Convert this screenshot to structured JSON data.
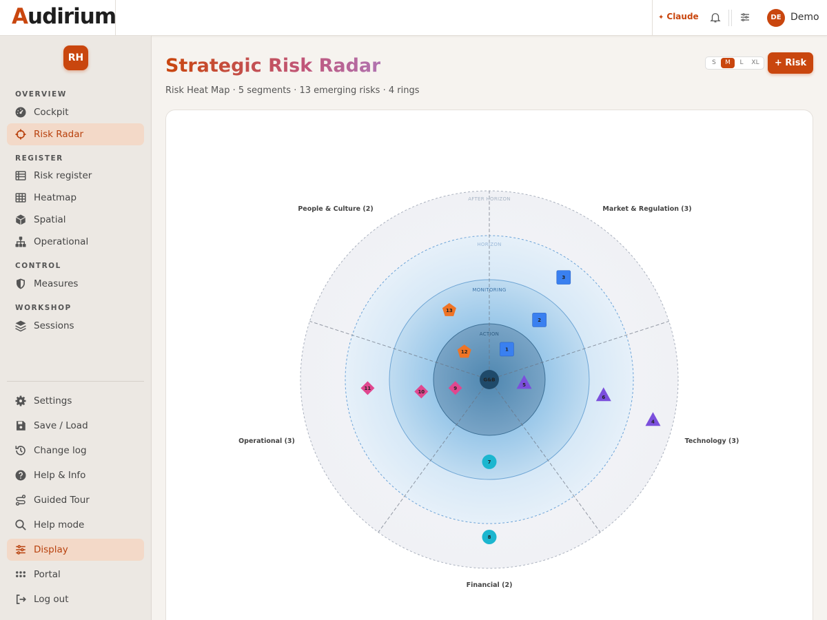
{
  "topbar": {
    "logo_prefix": "A",
    "logo_rest": "udirium",
    "claude_label": "Claude",
    "user_initials": "DE",
    "user_name": "Demo",
    "icons": [
      "bell-icon",
      "sliders-icon"
    ]
  },
  "sidebar": {
    "badge": "RH",
    "sections": {
      "overview": "OVERVIEW",
      "register": "REGISTER",
      "control": "CONTROL",
      "workshop": "WORKSHOP"
    },
    "items": {
      "cockpit": "Cockpit",
      "risk_radar": "Risk Radar",
      "risk_register": "Risk register",
      "heatmap": "Heatmap",
      "spatial": "Spatial",
      "operational": "Operational",
      "measures": "Measures",
      "sessions": "Sessions",
      "settings": "Settings",
      "save_load": "Save / Load",
      "change_log": "Change log",
      "help_info": "Help & Info",
      "guided_tour": "Guided Tour",
      "help_mode": "Help mode",
      "display": "Display",
      "portal": "Portal",
      "log_out": "Log out"
    },
    "active": [
      "risk_radar",
      "display"
    ]
  },
  "main": {
    "title": "Strategic Risk Radar",
    "subtitle": "Risk Heat Map · 5 segments · 13 emerging risks · 4 rings",
    "sizes": [
      "S",
      "M",
      "L",
      "XL"
    ],
    "selected_size": "M",
    "add_button": "+ Risk"
  },
  "radar": {
    "center_label": "G&B",
    "rings": [
      "ACTION",
      "MONITORING",
      "HORIZON",
      "AFTER HORIZON"
    ],
    "segments": [
      "Market & Regulation (3)",
      "Technology (3)",
      "Financial (2)",
      "Operational (3)",
      "People & Culture (2)"
    ],
    "colors": {
      "square": "#3a80f0",
      "triangle": "#7b4fdc",
      "circle": "#1cb6cf",
      "diamond": "#e0478f",
      "pentagon": "#ef7426",
      "accent": "#c9460e"
    },
    "risks": [
      {
        "id": "1",
        "segment": "Market & Regulation",
        "ring": "ACTION",
        "shape": "square"
      },
      {
        "id": "2",
        "segment": "Market & Regulation",
        "ring": "MONITORING",
        "shape": "square"
      },
      {
        "id": "3",
        "segment": "Market & Regulation",
        "ring": "HORIZON",
        "shape": "square"
      },
      {
        "id": "4",
        "segment": "Technology",
        "ring": "AFTER HORIZON",
        "shape": "triangle"
      },
      {
        "id": "5",
        "segment": "Technology",
        "ring": "ACTION",
        "shape": "triangle"
      },
      {
        "id": "6",
        "segment": "Technology",
        "ring": "HORIZON",
        "shape": "triangle"
      },
      {
        "id": "7",
        "segment": "Financial",
        "ring": "MONITORING",
        "shape": "circle"
      },
      {
        "id": "8",
        "segment": "Financial",
        "ring": "AFTER HORIZON",
        "shape": "circle"
      },
      {
        "id": "9",
        "segment": "Operational",
        "ring": "ACTION",
        "shape": "diamond"
      },
      {
        "id": "10",
        "segment": "Operational",
        "ring": "MONITORING",
        "shape": "diamond"
      },
      {
        "id": "11",
        "segment": "Operational",
        "ring": "HORIZON",
        "shape": "diamond"
      },
      {
        "id": "12",
        "segment": "People & Culture",
        "ring": "ACTION",
        "shape": "pentagon"
      },
      {
        "id": "13",
        "segment": "People & Culture",
        "ring": "MONITORING",
        "shape": "pentagon"
      }
    ]
  }
}
